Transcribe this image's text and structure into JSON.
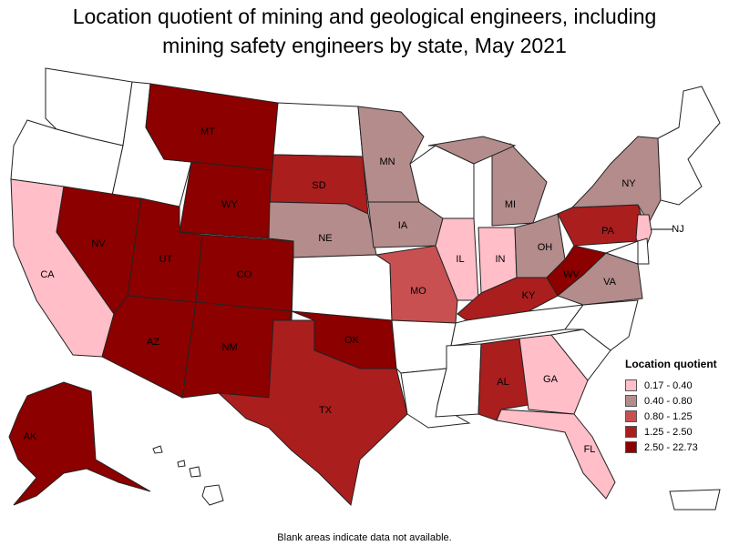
{
  "title_line1": "Location quotient of mining and geological engineers, including",
  "title_line2": "mining safety engineers by state, May 2021",
  "legend": {
    "title": "Location quotient",
    "items": [
      {
        "label": "0.17 - 0.40",
        "color": "#ffbec8"
      },
      {
        "label": "0.40 - 0.80",
        "color": "#b48c8c"
      },
      {
        "label": "0.80 - 1.25",
        "color": "#c85050"
      },
      {
        "label": "1.25 - 2.50",
        "color": "#aa1e1e"
      },
      {
        "label": "2.50 - 22.73",
        "color": "#8c0000"
      }
    ]
  },
  "footnote": "Blank areas indicate data not available.",
  "states": {
    "WA": {
      "label": "",
      "cls": "none"
    },
    "OR": {
      "label": "",
      "cls": "none"
    },
    "ID": {
      "label": "",
      "cls": "none"
    },
    "CA": {
      "label": "CA",
      "cls": 0
    },
    "NV": {
      "label": "NV",
      "cls": 4
    },
    "MT": {
      "label": "MT",
      "cls": 4
    },
    "WY": {
      "label": "WY",
      "cls": 4
    },
    "UT": {
      "label": "UT",
      "cls": 4
    },
    "CO": {
      "label": "CO",
      "cls": 4
    },
    "AZ": {
      "label": "AZ",
      "cls": 4
    },
    "NM": {
      "label": "NM",
      "cls": 4
    },
    "ND": {
      "label": "",
      "cls": "none"
    },
    "SD": {
      "label": "SD",
      "cls": 3
    },
    "NE": {
      "label": "NE",
      "cls": 1
    },
    "KS": {
      "label": "",
      "cls": "none"
    },
    "OK": {
      "label": "OK",
      "cls": 4
    },
    "TX": {
      "label": "TX",
      "cls": 3
    },
    "MN": {
      "label": "MN",
      "cls": 1
    },
    "IA": {
      "label": "IA",
      "cls": 1
    },
    "MO": {
      "label": "MO",
      "cls": 2
    },
    "AR": {
      "label": "",
      "cls": "none"
    },
    "LA": {
      "label": "",
      "cls": "none"
    },
    "WI": {
      "label": "",
      "cls": "none"
    },
    "IL": {
      "label": "IL",
      "cls": 0
    },
    "IN": {
      "label": "IN",
      "cls": 0
    },
    "MI": {
      "label": "MI",
      "cls": 1
    },
    "OH": {
      "label": "OH",
      "cls": 1
    },
    "KY": {
      "label": "KY",
      "cls": 3
    },
    "TN": {
      "label": "",
      "cls": "none"
    },
    "MS": {
      "label": "",
      "cls": "none"
    },
    "AL": {
      "label": "AL",
      "cls": 3
    },
    "GA": {
      "label": "GA",
      "cls": 0
    },
    "FL": {
      "label": "FL",
      "cls": 0
    },
    "SC": {
      "label": "",
      "cls": "none"
    },
    "NC": {
      "label": "",
      "cls": "none"
    },
    "VA": {
      "label": "VA",
      "cls": 1
    },
    "WV": {
      "label": "WV",
      "cls": 4
    },
    "PA": {
      "label": "PA",
      "cls": 3
    },
    "NY": {
      "label": "NY",
      "cls": 1
    },
    "NJ": {
      "label": "NJ",
      "cls": 0
    },
    "MD": {
      "label": "",
      "cls": "none"
    },
    "DE": {
      "label": "",
      "cls": "none"
    },
    "NE_NEW": {
      "label": "",
      "cls": "none"
    },
    "AK": {
      "label": "AK",
      "cls": 4
    },
    "HI": {
      "label": "",
      "cls": "none"
    },
    "PR": {
      "label": "",
      "cls": "none"
    }
  }
}
